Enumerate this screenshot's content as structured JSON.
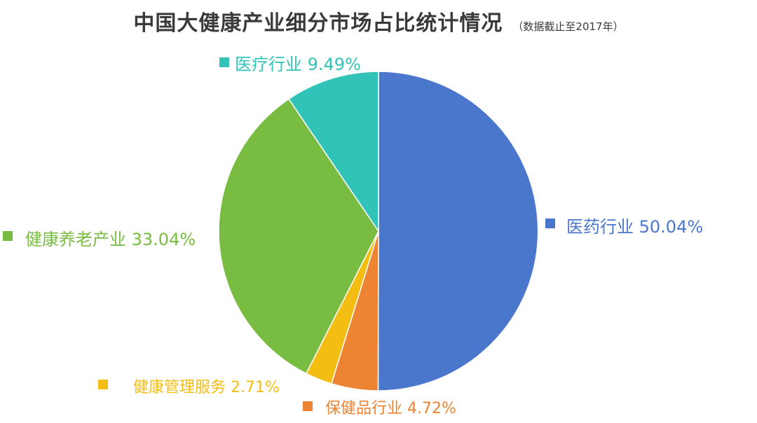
{
  "chart_data": {
    "type": "pie",
    "title": "中国大健康产业细分市场占比统计情况",
    "subtitle": "（数据截止至2017年）",
    "slices": [
      {
        "name": "医药行业",
        "value": 50.04,
        "value_label": "50.04%",
        "color": "#4a76cc"
      },
      {
        "name": "保健品行业",
        "value": 4.72,
        "value_label": "4.72%",
        "color": "#ec8433"
      },
      {
        "name": "健康管理服务",
        "value": 2.71,
        "value_label": "2.71%",
        "color": "#f3bd11"
      },
      {
        "name": "健康养老产业",
        "value": 33.04,
        "value_label": "33.04%",
        "color": "#78bc42"
      },
      {
        "name": "医疗行业",
        "value": 9.49,
        "value_label": "9.49%",
        "color": "#31c3b7"
      }
    ],
    "start_angle": "12 o'clock",
    "direction": "clockwise",
    "slice_border_color": "#ffffff"
  }
}
